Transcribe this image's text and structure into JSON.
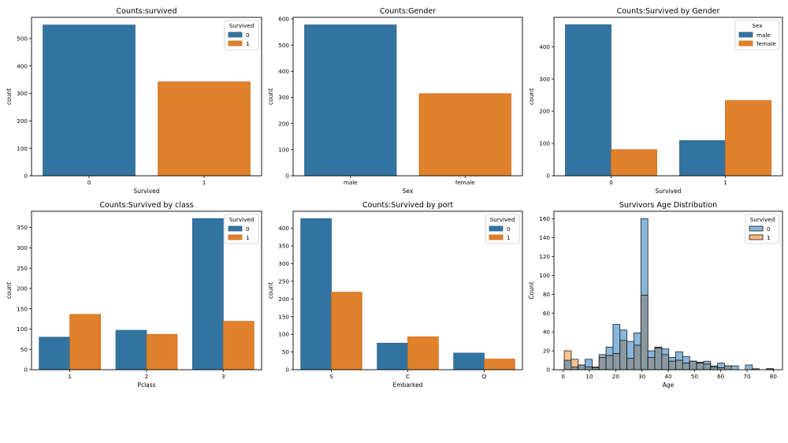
{
  "colors": {
    "blue": "#3274a1",
    "orange": "#e1812c",
    "blue_edge": "#2a5f86",
    "orange_edge": "#c8691a",
    "hist_blue": "#89b8de",
    "hist_orange": "#fbbb7e",
    "overlap": "#8a9aa0"
  },
  "chart_data": [
    {
      "type": "bar",
      "title": "Counts:survived",
      "xlabel": "Survived",
      "ylabel": "count",
      "categories": [
        "0",
        "1"
      ],
      "hue_per_category": true,
      "values": [
        549,
        342
      ],
      "ylim": [
        0,
        577
      ],
      "yticks": [
        0,
        100,
        200,
        300,
        400,
        500
      ],
      "legend": {
        "title": "Survived",
        "entries": [
          "0",
          "1"
        ],
        "placement": "top-right"
      }
    },
    {
      "type": "bar",
      "title": "Counts:Gender",
      "xlabel": "Sex",
      "ylabel": "count",
      "categories": [
        "male",
        "female"
      ],
      "hue_per_category": true,
      "values": [
        577,
        314
      ],
      "ylim": [
        0,
        606
      ],
      "yticks": [
        0,
        100,
        200,
        300,
        400,
        500,
        600
      ],
      "legend": null
    },
    {
      "type": "bar",
      "title": "Counts:Survived by Gender",
      "xlabel": "Survived",
      "ylabel": "count",
      "categories": [
        "0",
        "1"
      ],
      "series": [
        {
          "name": "male",
          "values": [
            468,
            109
          ]
        },
        {
          "name": "female",
          "values": [
            81,
            233
          ]
        }
      ],
      "ylim": [
        0,
        491
      ],
      "yticks": [
        0,
        100,
        200,
        300,
        400
      ],
      "legend": {
        "title": "Sex",
        "entries": [
          "male",
          "female"
        ],
        "placement": "top-right"
      }
    },
    {
      "type": "bar",
      "title": "Counts:Survived by class",
      "xlabel": "Pclass",
      "ylabel": "count",
      "categories": [
        "1",
        "2",
        "3"
      ],
      "series": [
        {
          "name": "0",
          "values": [
            80,
            97,
            372
          ]
        },
        {
          "name": "1",
          "values": [
            136,
            87,
            119
          ]
        }
      ],
      "ylim": [
        0,
        390
      ],
      "yticks": [
        0,
        50,
        100,
        150,
        200,
        250,
        300,
        350
      ],
      "legend": {
        "title": "Survived",
        "entries": [
          "0",
          "1"
        ],
        "placement": "top-right"
      }
    },
    {
      "type": "bar",
      "title": "Counts:Survived by port",
      "xlabel": "Embarked",
      "ylabel": "count",
      "categories": [
        "S",
        "C",
        "Q"
      ],
      "series": [
        {
          "name": "0",
          "values": [
            427,
            75,
            47
          ]
        },
        {
          "name": "1",
          "values": [
            219,
            93,
            30
          ]
        }
      ],
      "ylim": [
        0,
        448
      ],
      "yticks": [
        0,
        50,
        100,
        150,
        200,
        250,
        300,
        350,
        400
      ],
      "legend": {
        "title": "Survived",
        "entries": [
          "0",
          "1"
        ],
        "placement": "top-right"
      }
    },
    {
      "type": "histogram",
      "title": "Survivors Age Distribution",
      "xlabel": "Age",
      "ylabel": "Count",
      "bin_start": 0.42,
      "bin_end": 80,
      "bins": 30,
      "series": [
        {
          "name": "0",
          "values": [
            10,
            3,
            5,
            11,
            2,
            16,
            24,
            48,
            42,
            30,
            39,
            160,
            20,
            24,
            22,
            13,
            19,
            14,
            9,
            8,
            9,
            4,
            7,
            4,
            4,
            0,
            5,
            1,
            0,
            1
          ]
        },
        {
          "name": "1",
          "values": [
            20,
            11,
            5,
            3,
            3,
            13,
            15,
            17,
            31,
            12,
            26,
            79,
            13,
            23,
            16,
            9,
            10,
            7,
            9,
            7,
            6,
            3,
            2,
            4,
            0,
            0,
            0,
            0,
            0,
            1
          ]
        }
      ],
      "xlim": [
        -3.5,
        83.5
      ],
      "ylim": [
        0,
        168
      ],
      "xticks": [
        0,
        10,
        20,
        30,
        40,
        50,
        60,
        70,
        80
      ],
      "yticks": [
        0,
        20,
        40,
        60,
        80,
        100,
        120,
        140,
        160
      ],
      "legend": {
        "title": "Survived",
        "entries": [
          "0",
          "1"
        ],
        "placement": "top-right"
      }
    }
  ]
}
